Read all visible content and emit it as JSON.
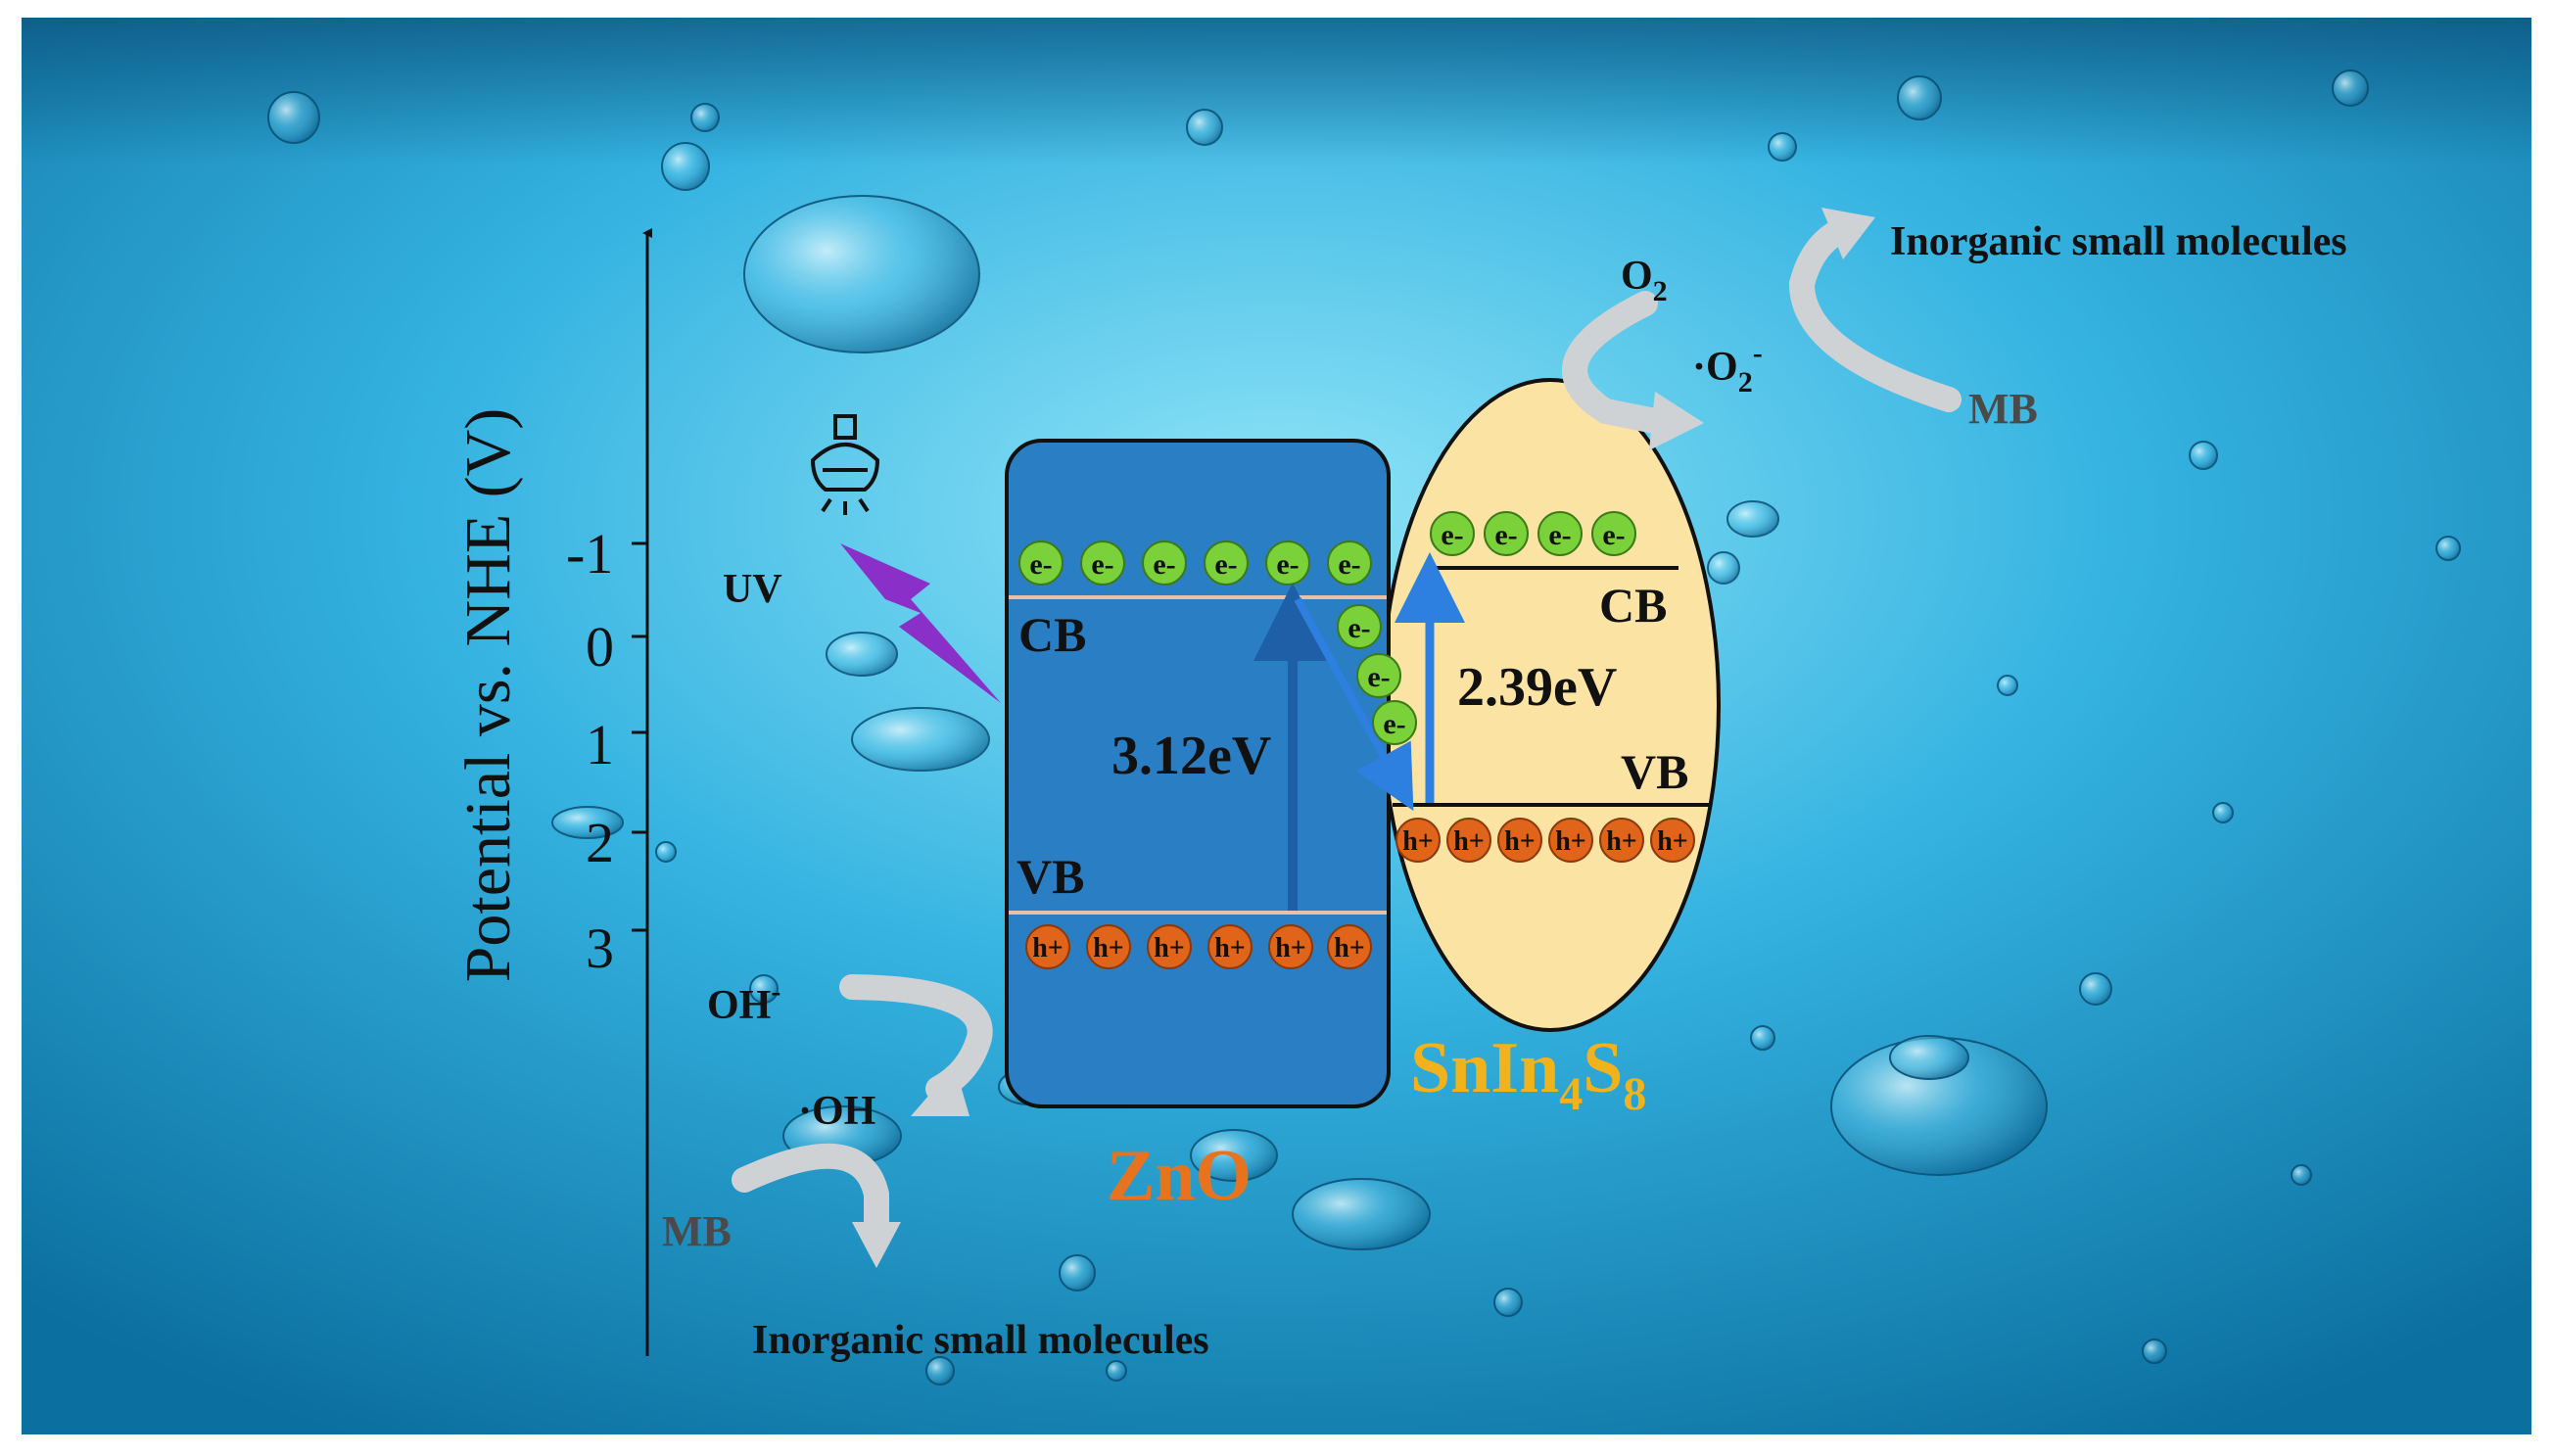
{
  "axis": {
    "label": "Potential vs. NHE (V)",
    "ticks": [
      "-1",
      "0",
      "1",
      "2",
      "3"
    ]
  },
  "light": {
    "label": "UV",
    "bulb_icon": "light-bulb-icon",
    "bolt_color": "#8b2fc9"
  },
  "zno": {
    "name": "ZnO",
    "cb_label": "CB",
    "vb_label": "VB",
    "band_gap": "3.12eV",
    "electrons": [
      "e-",
      "e-",
      "e-",
      "e-",
      "e-",
      "e-"
    ],
    "holes": [
      "h+",
      "h+",
      "h+",
      "h+",
      "h+",
      "h+"
    ],
    "color": "#2a7fc4"
  },
  "sis": {
    "name_main": "SnIn",
    "name_sub1": "4",
    "name_mid": "S",
    "name_sub2": "8",
    "cb_label": "CB",
    "vb_label": "VB",
    "band_gap": "2.39eV",
    "electrons": [
      "e-",
      "e-",
      "e-",
      "e-"
    ],
    "holes": [
      "h+",
      "h+",
      "h+",
      "h+",
      "h+",
      "h+"
    ],
    "color": "#fbe3a3"
  },
  "transfer": {
    "electrons": [
      "e-",
      "e-",
      "e-"
    ]
  },
  "reduction": {
    "reactant_main": "O",
    "reactant_sub": "2",
    "radical_prefix": "·O",
    "radical_sub": "2",
    "radical_sup": "-",
    "mb": "MB",
    "product": "Inorganic small molecules"
  },
  "oxidation": {
    "reactant_main": "OH",
    "reactant_sup": "-",
    "radical": "·OH",
    "mb": "MB",
    "product": "Inorganic small molecules"
  },
  "colors": {
    "electron": "#7ad13a",
    "hole": "#e0641a",
    "arrow_blue": "#1f5fa8",
    "curve_arrow": "#cfd2d4"
  }
}
